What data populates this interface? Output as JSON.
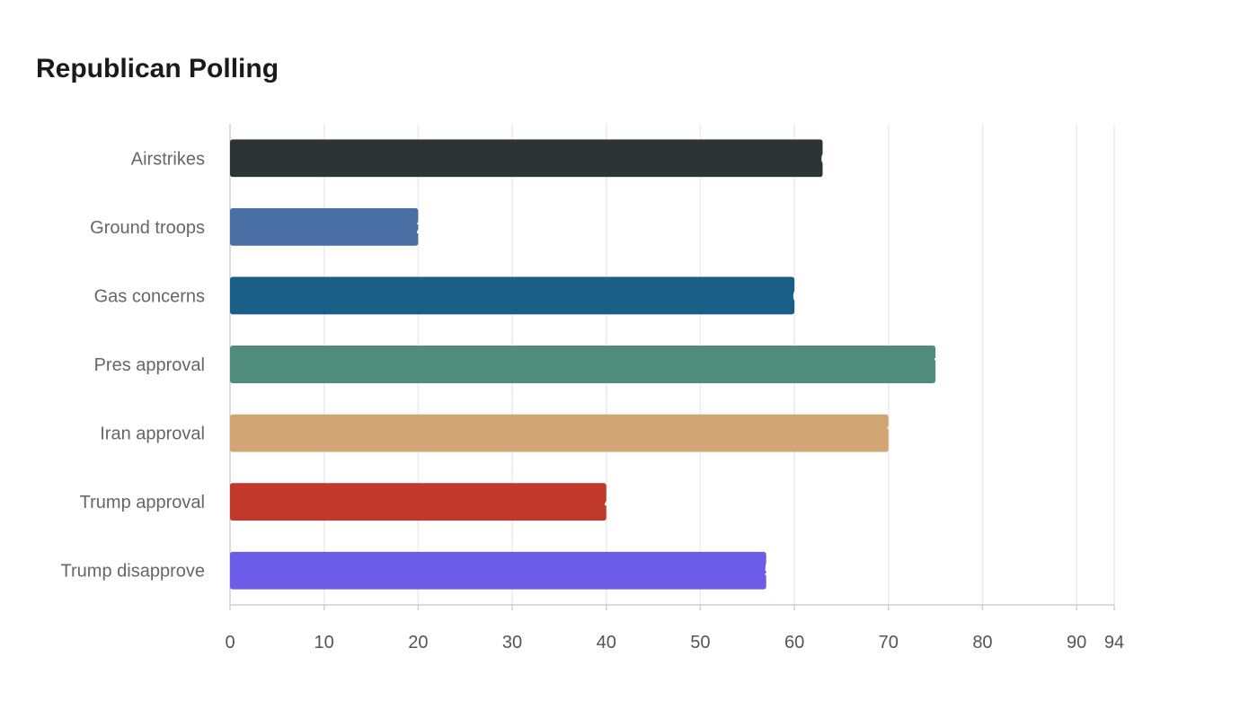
{
  "chart_data": {
    "type": "bar",
    "orientation": "horizontal",
    "title": "Republican Polling",
    "categories": [
      "Airstrikes",
      "Ground troops",
      "Gas concerns",
      "Pres approval",
      "Iran approval",
      "Trump approval",
      "Trump disapprove"
    ],
    "values": [
      63,
      20,
      60,
      75,
      70,
      40,
      57
    ],
    "colors": [
      "#2d3436",
      "#4a6fa5",
      "#1a5f87",
      "#4f8d7a",
      "#d2a575",
      "#c0392b",
      "#6c5ce7"
    ],
    "xticks": [
      0,
      10,
      20,
      30,
      40,
      50,
      60,
      70,
      80,
      90,
      94
    ],
    "xlim": [
      0,
      94
    ],
    "xlabel": "",
    "ylabel": "",
    "grid": true
  }
}
